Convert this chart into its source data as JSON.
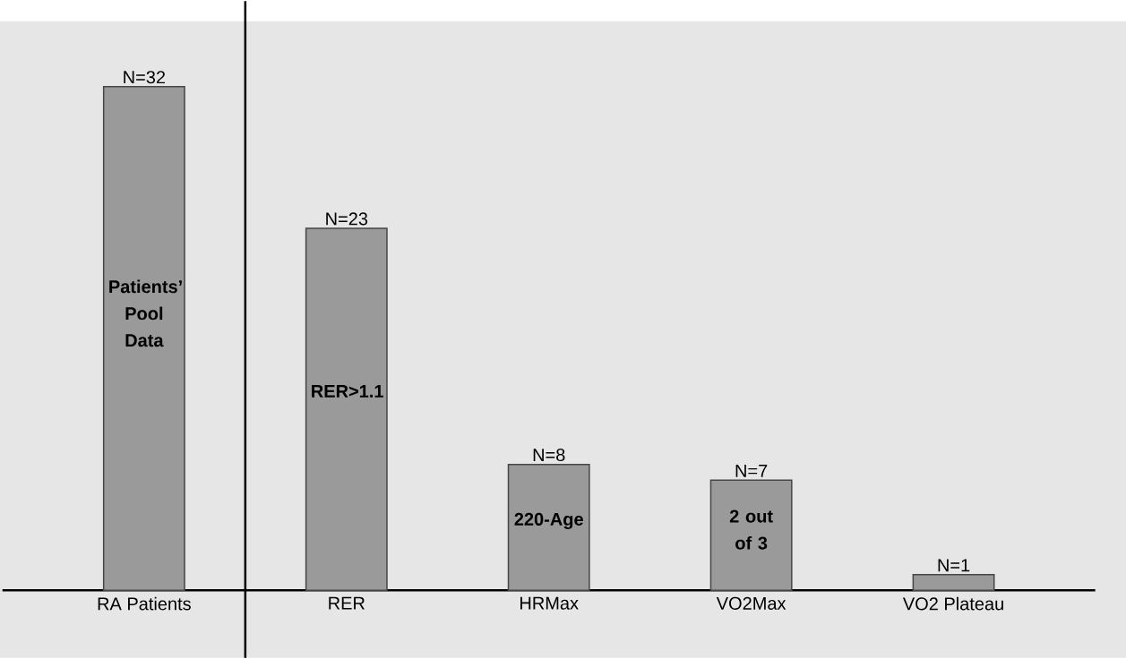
{
  "chart_data": {
    "type": "bar",
    "categories": [
      "RA Patients",
      "RER",
      "HRMax",
      "VO2Max",
      "VO2 Plateau"
    ],
    "values": [
      32,
      23,
      8,
      7,
      1
    ],
    "value_labels": [
      "N=32",
      "N=23",
      "N=8",
      "N=7",
      "N=1"
    ],
    "color": "#9a9a9a",
    "annotations": [
      "Patients’ Pool Data",
      "RER>1.1",
      "220-Age",
      "2 out of 3"
    ]
  }
}
